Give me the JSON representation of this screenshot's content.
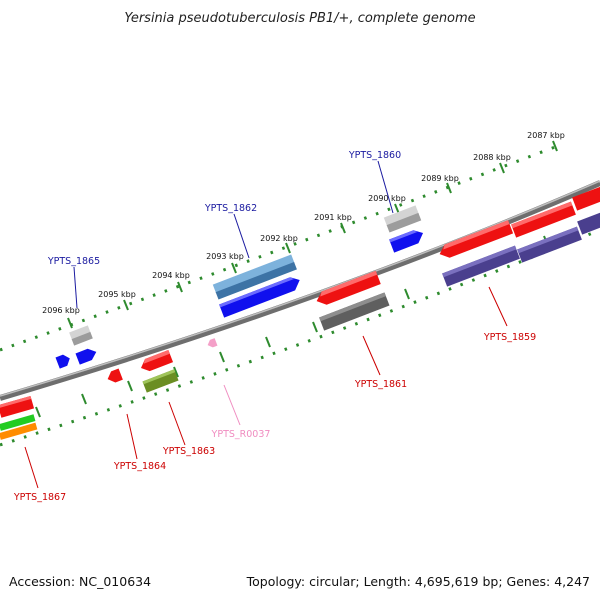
{
  "title": "Yersinia pseudotuberculosis PB1/+, complete genome",
  "footer": {
    "accession": "Accession: NC_010634",
    "stats": "Topology: circular; Length: 4,695,619 bp; Genes: 4,247"
  },
  "colors": {
    "backbone": "#7a7a7a",
    "tick": "#2e8b2e",
    "label_forward": "#1a1aa0",
    "label_reverse": "#cc0000",
    "label_rna": "#f08cc0",
    "gene_red": "#ee1111",
    "gene_blue": "#1010ee",
    "gene_grey": "#b5b5b5",
    "gene_darkgrey": "#666666",
    "gene_steel": "#4a86b8",
    "gene_purple": "#4a3f8e",
    "gene_olive": "#6b8e23",
    "gene_green": "#22cc22",
    "gene_orange": "#ff8c00",
    "gene_pink": "#f4a0c8"
  },
  "ticks": [
    {
      "label": "2087 kbp"
    },
    {
      "label": "2088 kbp"
    },
    {
      "label": "2089 kbp"
    },
    {
      "label": "2090 kbp"
    },
    {
      "label": "2091 kbp"
    },
    {
      "label": "2092 kbp"
    },
    {
      "label": "2093 kbp"
    },
    {
      "label": "2094 kbp"
    },
    {
      "label": "2095 kbp"
    },
    {
      "label": "2096 kbp"
    }
  ],
  "gene_labels": [
    {
      "text": "YPTS_1860",
      "strand": "forward"
    },
    {
      "text": "YPTS_1862",
      "strand": "forward"
    },
    {
      "text": "YPTS_1865",
      "strand": "forward"
    },
    {
      "text": "YPTS_1859",
      "strand": "reverse"
    },
    {
      "text": "YPTS_1861",
      "strand": "reverse"
    },
    {
      "text": "YPTS_R0037",
      "strand": "rna"
    },
    {
      "text": "YPTS_1863",
      "strand": "reverse"
    },
    {
      "text": "YPTS_1864",
      "strand": "reverse"
    },
    {
      "text": "YPTS_1867",
      "strand": "reverse"
    }
  ]
}
